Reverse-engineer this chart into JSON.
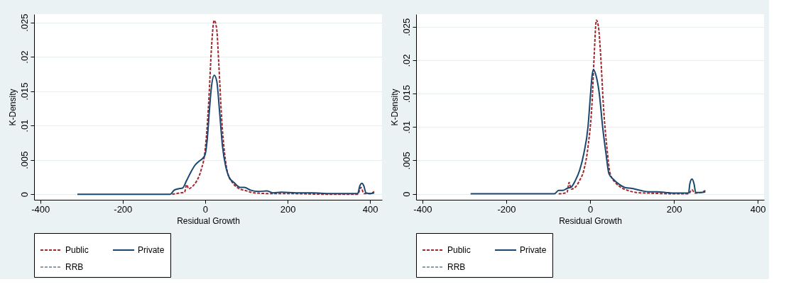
{
  "chart_data": [
    {
      "type": "line",
      "xlabel": "Residual Growth",
      "ylabel": "K-Density",
      "xlim": [
        -415,
        429
      ],
      "ylim": [
        -0.0008,
        0.0262
      ],
      "xticks": [
        -400,
        -200,
        0,
        200,
        400
      ],
      "yticks": [
        {
          "value": 0,
          "label": "0"
        },
        {
          "value": 0.005,
          "label": ".005"
        },
        {
          "value": 0.01,
          "label": ".01"
        },
        {
          "value": 0.015,
          "label": ".015"
        },
        {
          "value": 0.02,
          "label": ".02"
        },
        {
          "value": 0.025,
          "label": ".025"
        }
      ],
      "grid": "y",
      "legend": "bottom",
      "series": [
        {
          "name": "Public",
          "color": "#a0282e",
          "line_style": "dashed",
          "x": [
            -80,
            -60,
            -50,
            -45,
            -40,
            -30,
            -20,
            -10,
            0,
            5,
            10,
            15,
            22,
            28,
            33,
            40,
            47,
            55,
            65,
            80,
            100,
            120,
            160,
            200,
            300,
            370,
            378,
            385,
            400,
            410
          ],
          "values": [
            0,
            0.0002,
            0.0003,
            0.0014,
            0.0008,
            0.0012,
            0.002,
            0.0035,
            0.0065,
            0.01,
            0.015,
            0.021,
            0.0253,
            0.024,
            0.019,
            0.011,
            0.006,
            0.003,
            0.0018,
            0.0009,
            0.0005,
            0.0002,
            0.0001,
            0.0001,
            0,
            0,
            0.001,
            0.0001,
            0.0001,
            0.0004
          ]
        },
        {
          "name": "Private",
          "color": "#1a476f",
          "line_style": "solid",
          "x": [
            -310,
            -85,
            -75,
            -65,
            -55,
            -45,
            -35,
            -25,
            -15,
            -5,
            0,
            5,
            10,
            15,
            22,
            28,
            35,
            42,
            50,
            58,
            70,
            85,
            95,
            110,
            130,
            150,
            165,
            185,
            220,
            260,
            300,
            360,
            370,
            375,
            380,
            385,
            390,
            400,
            410
          ],
          "values": [
            0,
            0,
            0.0006,
            0.0008,
            0.0009,
            0.002,
            0.0032,
            0.0042,
            0.0048,
            0.0053,
            0.0058,
            0.008,
            0.012,
            0.0155,
            0.0173,
            0.0165,
            0.012,
            0.007,
            0.004,
            0.0025,
            0.0017,
            0.001,
            0.001,
            0.0006,
            0.0004,
            0.0005,
            0.0002,
            0.0003,
            0.0002,
            0.0002,
            0.0001,
            0.0001,
            0.0001,
            0.0012,
            0.0016,
            0.0012,
            0.0002,
            0.0001,
            0.0002
          ]
        },
        {
          "name": "RRB",
          "color": "#8c9ca6",
          "line_style": "dashed"
        }
      ]
    },
    {
      "type": "line",
      "xlabel": "Residual Growth",
      "ylabel": "K-Density",
      "xlim": [
        -415,
        415
      ],
      "ylim": [
        -0.0009,
        0.0269
      ],
      "xticks": [
        -400,
        -200,
        0,
        200,
        400
      ],
      "yticks": [
        {
          "value": 0,
          "label": "0"
        },
        {
          "value": 0.005,
          "label": ".005"
        },
        {
          "value": 0.01,
          "label": ".01"
        },
        {
          "value": 0.015,
          "label": ".015"
        },
        {
          "value": 0.02,
          "label": ".02"
        },
        {
          "value": 0.025,
          "label": ".025"
        }
      ],
      "grid": "y",
      "legend": "bottom",
      "series": [
        {
          "name": "Public",
          "color": "#a0282e",
          "line_style": "dashed",
          "x": [
            -75,
            -55,
            -50,
            -45,
            -35,
            -25,
            -15,
            -5,
            5,
            10,
            15,
            20,
            25,
            32,
            40,
            48,
            60,
            75,
            90,
            110,
            140,
            200,
            235,
            243,
            250,
            265,
            275
          ],
          "values": [
            0,
            0.0002,
            0.0017,
            0.0007,
            0.001,
            0.002,
            0.0035,
            0.007,
            0.014,
            0.021,
            0.026,
            0.025,
            0.021,
            0.013,
            0.007,
            0.003,
            0.0017,
            0.0009,
            0.0005,
            0.0002,
            0.0001,
            0,
            0,
            0.0006,
            0.0001,
            0.0002,
            0.0005
          ]
        },
        {
          "name": "Private",
          "color": "#1a476f",
          "line_style": "solid",
          "x": [
            -285,
            -85,
            -75,
            -65,
            -55,
            -45,
            -35,
            -25,
            -15,
            -5,
            0,
            5,
            8,
            15,
            22,
            30,
            38,
            45,
            55,
            70,
            85,
            100,
            120,
            140,
            160,
            180,
            200,
            235,
            238,
            243,
            248,
            252,
            265,
            275
          ],
          "values": [
            0,
            0,
            0.0005,
            0.0005,
            0.0008,
            0.001,
            0.002,
            0.0035,
            0.006,
            0.01,
            0.014,
            0.0178,
            0.0186,
            0.0175,
            0.015,
            0.01,
            0.006,
            0.003,
            0.0022,
            0.0014,
            0.0009,
            0.0008,
            0.0005,
            0.0003,
            0.0003,
            0.0002,
            0.0001,
            0.0001,
            0.0015,
            0.0022,
            0.0015,
            0.0002,
            0.0002,
            0.0003
          ]
        },
        {
          "name": "RRB",
          "color": "#8c9ca6",
          "line_style": "dashed"
        }
      ]
    }
  ]
}
